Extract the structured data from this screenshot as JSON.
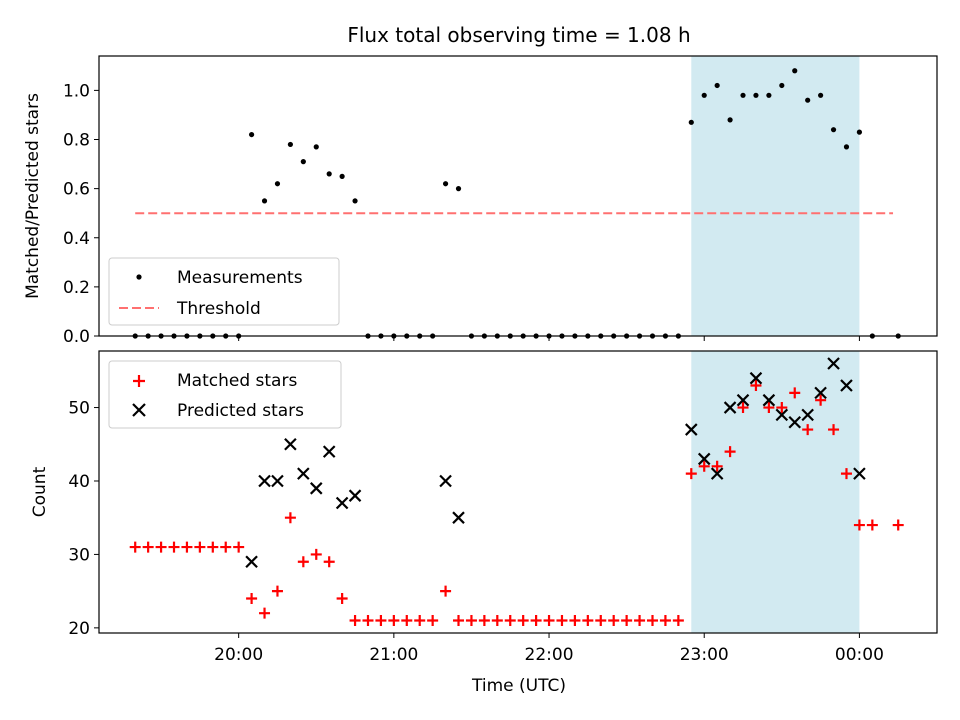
{
  "title": "Flux total observing time = 1.08 h",
  "chart_data": [
    {
      "type": "scatter",
      "ylabel": "Matched/Predicted stars",
      "xlabel": "",
      "x_unit": "time (UTC)",
      "x_range": [
        "19:06",
        "00:30"
      ],
      "ylim": [
        0,
        1.14
      ],
      "yticks": [
        "0.0",
        "0.2",
        "0.4",
        "0.6",
        "0.8",
        "1.0"
      ],
      "highlight_span": [
        "22:55",
        "00:00"
      ],
      "highlight_color": "#add8e6",
      "threshold": {
        "value": 0.5,
        "from": "19:20",
        "to": "00:13",
        "color": "#ff7070"
      },
      "legend": {
        "position": "lower-left",
        "entries": [
          "Measurements",
          "Threshold"
        ]
      },
      "series": [
        {
          "name": "Measurements",
          "color": "#000000",
          "x": [
            "19:20",
            "19:25",
            "19:30",
            "19:35",
            "19:40",
            "19:45",
            "19:50",
            "19:55",
            "20:00",
            "20:05",
            "20:10",
            "20:15",
            "20:20",
            "20:25",
            "20:30",
            "20:35",
            "20:40",
            "20:45",
            "20:50",
            "20:55",
            "21:00",
            "21:05",
            "21:10",
            "21:15",
            "21:20",
            "21:25",
            "21:30",
            "21:35",
            "21:40",
            "21:45",
            "21:50",
            "21:55",
            "22:00",
            "22:05",
            "22:10",
            "22:15",
            "22:20",
            "22:25",
            "22:30",
            "22:35",
            "22:40",
            "22:45",
            "22:50",
            "22:55",
            "23:00",
            "23:05",
            "23:10",
            "23:15",
            "23:20",
            "23:25",
            "23:30",
            "23:35",
            "23:40",
            "23:45",
            "23:50",
            "23:55",
            "00:00",
            "00:05",
            "00:15"
          ],
          "y": [
            0,
            0,
            0,
            0,
            0,
            0,
            0,
            0,
            0,
            0.82,
            0.55,
            0.62,
            0.78,
            0.71,
            0.77,
            0.66,
            0.65,
            0.55,
            0,
            0,
            0,
            0,
            0,
            0,
            0.62,
            0.6,
            0,
            0,
            0,
            0,
            0,
            0,
            0,
            0,
            0,
            0,
            0,
            0,
            0,
            0,
            0,
            0,
            0,
            0.87,
            0.98,
            1.02,
            0.88,
            0.98,
            0.98,
            0.98,
            1.02,
            1.08,
            0.96,
            0.98,
            0.84,
            0.77,
            0.83,
            0,
            0
          ]
        }
      ]
    },
    {
      "type": "scatter",
      "ylabel": "Count",
      "xlabel": "Time (UTC)",
      "x_unit": "time (UTC)",
      "x_range": [
        "19:06",
        "00:30"
      ],
      "xticks": [
        "20:00",
        "21:00",
        "22:00",
        "23:00",
        "00:00"
      ],
      "ylim": [
        19.3,
        57.7
      ],
      "yticks": [
        "20",
        "30",
        "40",
        "50"
      ],
      "highlight_span": [
        "22:55",
        "00:00"
      ],
      "highlight_color": "#add8e6",
      "legend": {
        "position": "top-left",
        "entries": [
          "Matched stars",
          "Predicted stars"
        ]
      },
      "series": [
        {
          "name": "Matched stars",
          "marker": "+",
          "color": "#ff0000",
          "x": [
            "19:20",
            "19:25",
            "19:30",
            "19:35",
            "19:40",
            "19:45",
            "19:50",
            "19:55",
            "20:00",
            "20:05",
            "20:10",
            "20:15",
            "20:20",
            "20:25",
            "20:30",
            "20:35",
            "20:40",
            "20:45",
            "20:50",
            "20:55",
            "21:00",
            "21:05",
            "21:10",
            "21:15",
            "21:20",
            "21:25",
            "21:30",
            "21:35",
            "21:40",
            "21:45",
            "21:50",
            "21:55",
            "22:00",
            "22:05",
            "22:10",
            "22:15",
            "22:20",
            "22:25",
            "22:30",
            "22:35",
            "22:40",
            "22:45",
            "22:50",
            "22:55",
            "23:00",
            "23:05",
            "23:10",
            "23:15",
            "23:20",
            "23:25",
            "23:30",
            "23:35",
            "23:40",
            "23:45",
            "23:50",
            "23:55",
            "00:00",
            "00:05",
            "00:15"
          ],
          "y": [
            31,
            31,
            31,
            31,
            31,
            31,
            31,
            31,
            31,
            24,
            22,
            25,
            35,
            29,
            30,
            29,
            24,
            21,
            21,
            21,
            21,
            21,
            21,
            21,
            25,
            21,
            21,
            21,
            21,
            21,
            21,
            21,
            21,
            21,
            21,
            21,
            21,
            21,
            21,
            21,
            21,
            21,
            21,
            41,
            42,
            42,
            44,
            50,
            53,
            50,
            50,
            52,
            47,
            51,
            47,
            41,
            34,
            34,
            34
          ]
        },
        {
          "name": "Predicted stars",
          "marker": "x",
          "color": "#000000",
          "x": [
            "20:05",
            "20:10",
            "20:15",
            "20:20",
            "20:25",
            "20:30",
            "20:35",
            "20:40",
            "20:45",
            "21:20",
            "21:25",
            "22:55",
            "23:00",
            "23:05",
            "23:10",
            "23:15",
            "23:20",
            "23:25",
            "23:30",
            "23:35",
            "23:40",
            "23:45",
            "23:50",
            "23:55",
            "00:00"
          ],
          "y": [
            29,
            40,
            40,
            45,
            41,
            39,
            44,
            37,
            38,
            40,
            35,
            47,
            43,
            41,
            50,
            51,
            54,
            51,
            49,
            48,
            49,
            52,
            56,
            53,
            41
          ]
        }
      ]
    }
  ]
}
